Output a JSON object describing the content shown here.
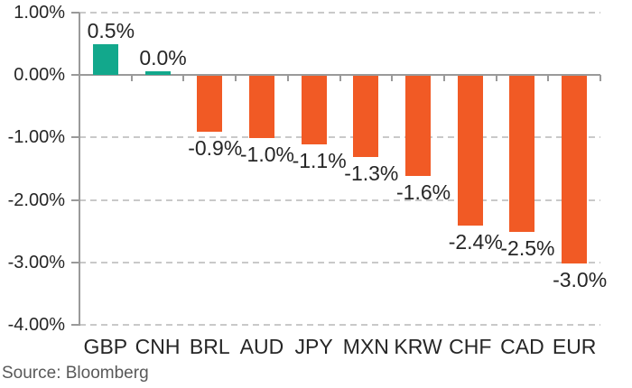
{
  "chart_data": {
    "type": "bar",
    "categories": [
      "GBP",
      "CNH",
      "BRL",
      "AUD",
      "JPY",
      "MXN",
      "KRW",
      "CHF",
      "CAD",
      "EUR"
    ],
    "values": [
      0.5,
      0.0,
      -0.9,
      -1.0,
      -1.1,
      -1.3,
      -1.6,
      -2.4,
      -2.5,
      -3.0
    ],
    "value_labels": [
      "0.5%",
      "0.0%",
      "-0.9%",
      "-1.0%",
      "-1.1%",
      "-1.3%",
      "-1.6%",
      "-2.4%",
      "-2.5%",
      "-3.0%"
    ],
    "ytick_labels": [
      "1.00%",
      "0.00%",
      "-1.00%",
      "-2.00%",
      "-3.00%",
      "-4.00%"
    ],
    "ytick_values": [
      1,
      0,
      -1,
      -2,
      -3,
      -4
    ],
    "ylim": [
      -4,
      1
    ],
    "grid": "dashed-horizontal",
    "legend": "none",
    "xlabel": "",
    "ylabel": "",
    "positive_color": "#12A88C",
    "negative_color": "#F15A25",
    "source": "Source: Bloomberg"
  }
}
